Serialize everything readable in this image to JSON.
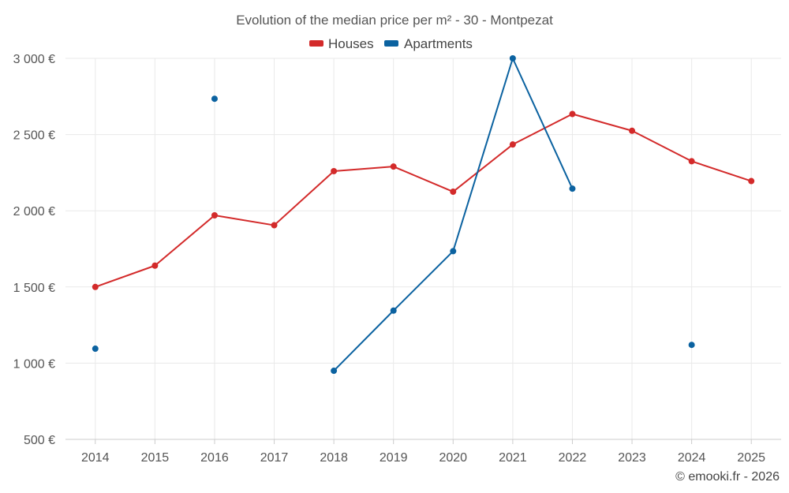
{
  "chart_data": {
    "type": "line",
    "title": "Evolution of the median price per m² - 30 - Montpezat",
    "categories": [
      "2014",
      "2015",
      "2016",
      "2017",
      "2018",
      "2019",
      "2020",
      "2021",
      "2022",
      "2023",
      "2024",
      "2025"
    ],
    "ylim": [
      500,
      3000
    ],
    "yticks": [
      500,
      1000,
      1500,
      2000,
      2500,
      3000
    ],
    "ytick_labels": [
      "500 €",
      "1 000 €",
      "1 500 €",
      "2 000 €",
      "2 500 €",
      "3 000 €"
    ],
    "xlabel": "",
    "ylabel": "",
    "grid": true,
    "legend_position": "top-center",
    "series": [
      {
        "name": "Houses",
        "color": "#d32a2a",
        "values": [
          1500,
          1640,
          1970,
          1905,
          2260,
          2290,
          2125,
          2435,
          2635,
          2525,
          2325,
          2195
        ]
      },
      {
        "name": "Apartments",
        "color": "#0b62a0",
        "values": [
          1095,
          null,
          2735,
          null,
          950,
          1345,
          1735,
          3000,
          2145,
          null,
          1120,
          null
        ]
      }
    ]
  },
  "credit": "© emooki.fr - 2026"
}
